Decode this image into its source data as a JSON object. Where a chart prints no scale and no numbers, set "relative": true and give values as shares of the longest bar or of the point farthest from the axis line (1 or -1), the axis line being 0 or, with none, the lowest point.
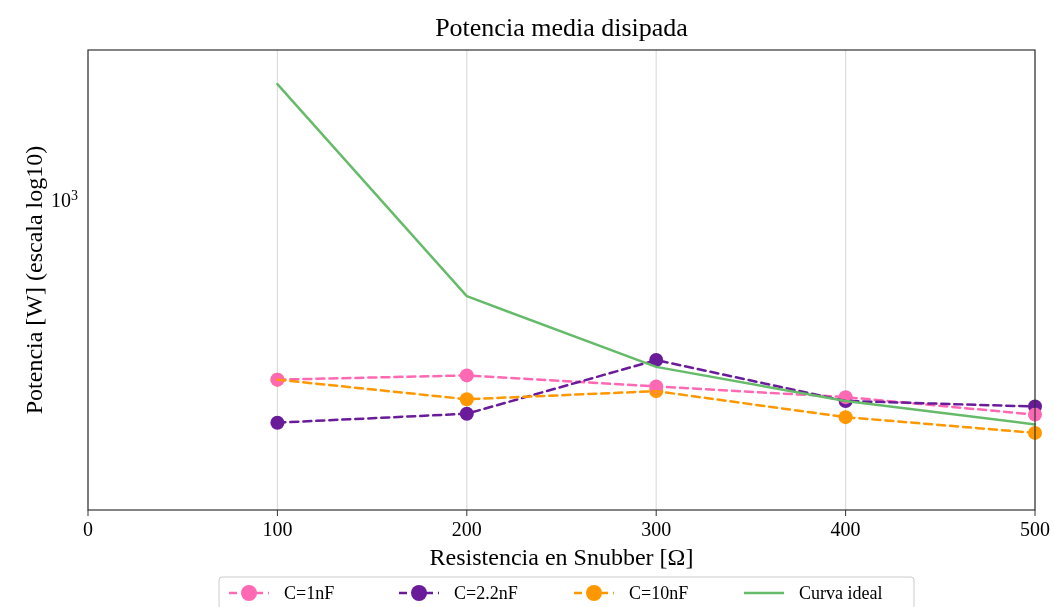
{
  "chart_data": {
    "type": "line",
    "title": "Potencia media disipada",
    "xlabel": "Resistencia en Snubber [Ω]",
    "ylabel": "Potencia [W] (escala log10)",
    "x": [
      100,
      200,
      300,
      400,
      500
    ],
    "series": [
      {
        "name": "C=1nF",
        "color": "#ff69b4",
        "values": [
          0.306,
          0.316,
          0.29,
          0.265,
          0.224
        ],
        "marker": "circle",
        "line_style": "dashed"
      },
      {
        "name": "C=2.2nF",
        "color": "#6a1b9a",
        "values": [
          0.205,
          0.226,
          0.352,
          0.256,
          0.243
        ],
        "marker": "circle",
        "line_style": "dashed"
      },
      {
        "name": "C=10nF",
        "color": "#ff9800",
        "values": [
          0.306,
          0.26,
          0.279,
          0.218,
          0.181
        ],
        "marker": "circle",
        "line_style": "dashed"
      },
      {
        "name": "Curva ideal",
        "color": "#66bb6a",
        "values": [
          1,
          0.502,
          0.336,
          0.256,
          0.201
        ],
        "marker": "none",
        "line_style": "solid"
      }
    ],
    "relative": true,
    "annotations": [
      "10$^{3}$"
    ],
    "xlim": [
      0,
      500
    ],
    "xticks": [
      0,
      100,
      200,
      300,
      400,
      500
    ],
    "grid": true,
    "legend": "bottom"
  }
}
